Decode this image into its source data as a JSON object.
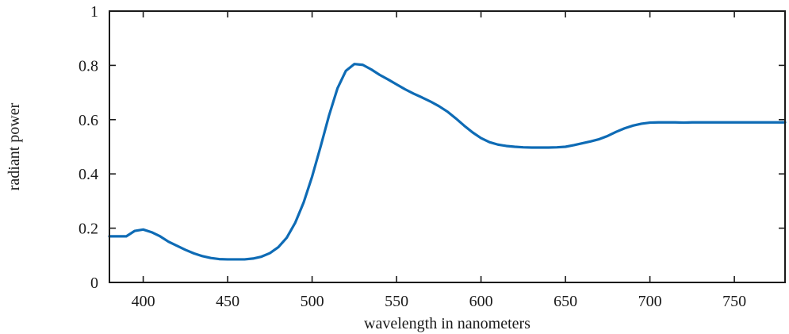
{
  "chart_data": {
    "type": "line",
    "title": "",
    "xlabel": "wavelength in nanometers",
    "ylabel": "radiant power",
    "xlim": [
      380,
      780
    ],
    "ylim": [
      0,
      1
    ],
    "xticks": [
      400,
      450,
      500,
      550,
      600,
      650,
      700,
      750
    ],
    "yticks": [
      0,
      0.2,
      0.4,
      0.6,
      0.8,
      1
    ],
    "ytick_labels": [
      "0",
      "0.2",
      "0.4",
      "0.6",
      "0.8",
      "1"
    ],
    "grid": false,
    "legend": false,
    "series_color": "#0e6bb5",
    "series": [
      {
        "x": [
          380,
          390,
          395,
          400,
          405,
          410,
          415,
          420,
          425,
          430,
          435,
          440,
          445,
          450,
          455,
          460,
          465,
          470,
          475,
          480,
          485,
          490,
          495,
          500,
          505,
          510,
          515,
          520,
          525,
          530,
          535,
          540,
          545,
          550,
          555,
          560,
          565,
          570,
          575,
          580,
          585,
          590,
          595,
          600,
          605,
          610,
          615,
          620,
          625,
          630,
          635,
          640,
          645,
          650,
          655,
          660,
          665,
          670,
          675,
          680,
          685,
          690,
          695,
          700,
          705,
          710,
          715,
          720,
          725,
          730,
          740,
          750,
          760,
          770,
          780
        ],
        "y": [
          0.17,
          0.17,
          0.19,
          0.195,
          0.185,
          0.17,
          0.15,
          0.135,
          0.12,
          0.107,
          0.097,
          0.09,
          0.086,
          0.085,
          0.085,
          0.085,
          0.088,
          0.095,
          0.108,
          0.13,
          0.165,
          0.22,
          0.295,
          0.39,
          0.5,
          0.615,
          0.715,
          0.78,
          0.805,
          0.802,
          0.785,
          0.765,
          0.748,
          0.73,
          0.712,
          0.696,
          0.682,
          0.667,
          0.65,
          0.63,
          0.605,
          0.578,
          0.553,
          0.532,
          0.517,
          0.508,
          0.503,
          0.5,
          0.498,
          0.497,
          0.497,
          0.497,
          0.498,
          0.5,
          0.506,
          0.513,
          0.52,
          0.528,
          0.54,
          0.555,
          0.568,
          0.578,
          0.585,
          0.589,
          0.59,
          0.59,
          0.59,
          0.589,
          0.59,
          0.59,
          0.59,
          0.59,
          0.59,
          0.59,
          0.59
        ]
      }
    ]
  }
}
